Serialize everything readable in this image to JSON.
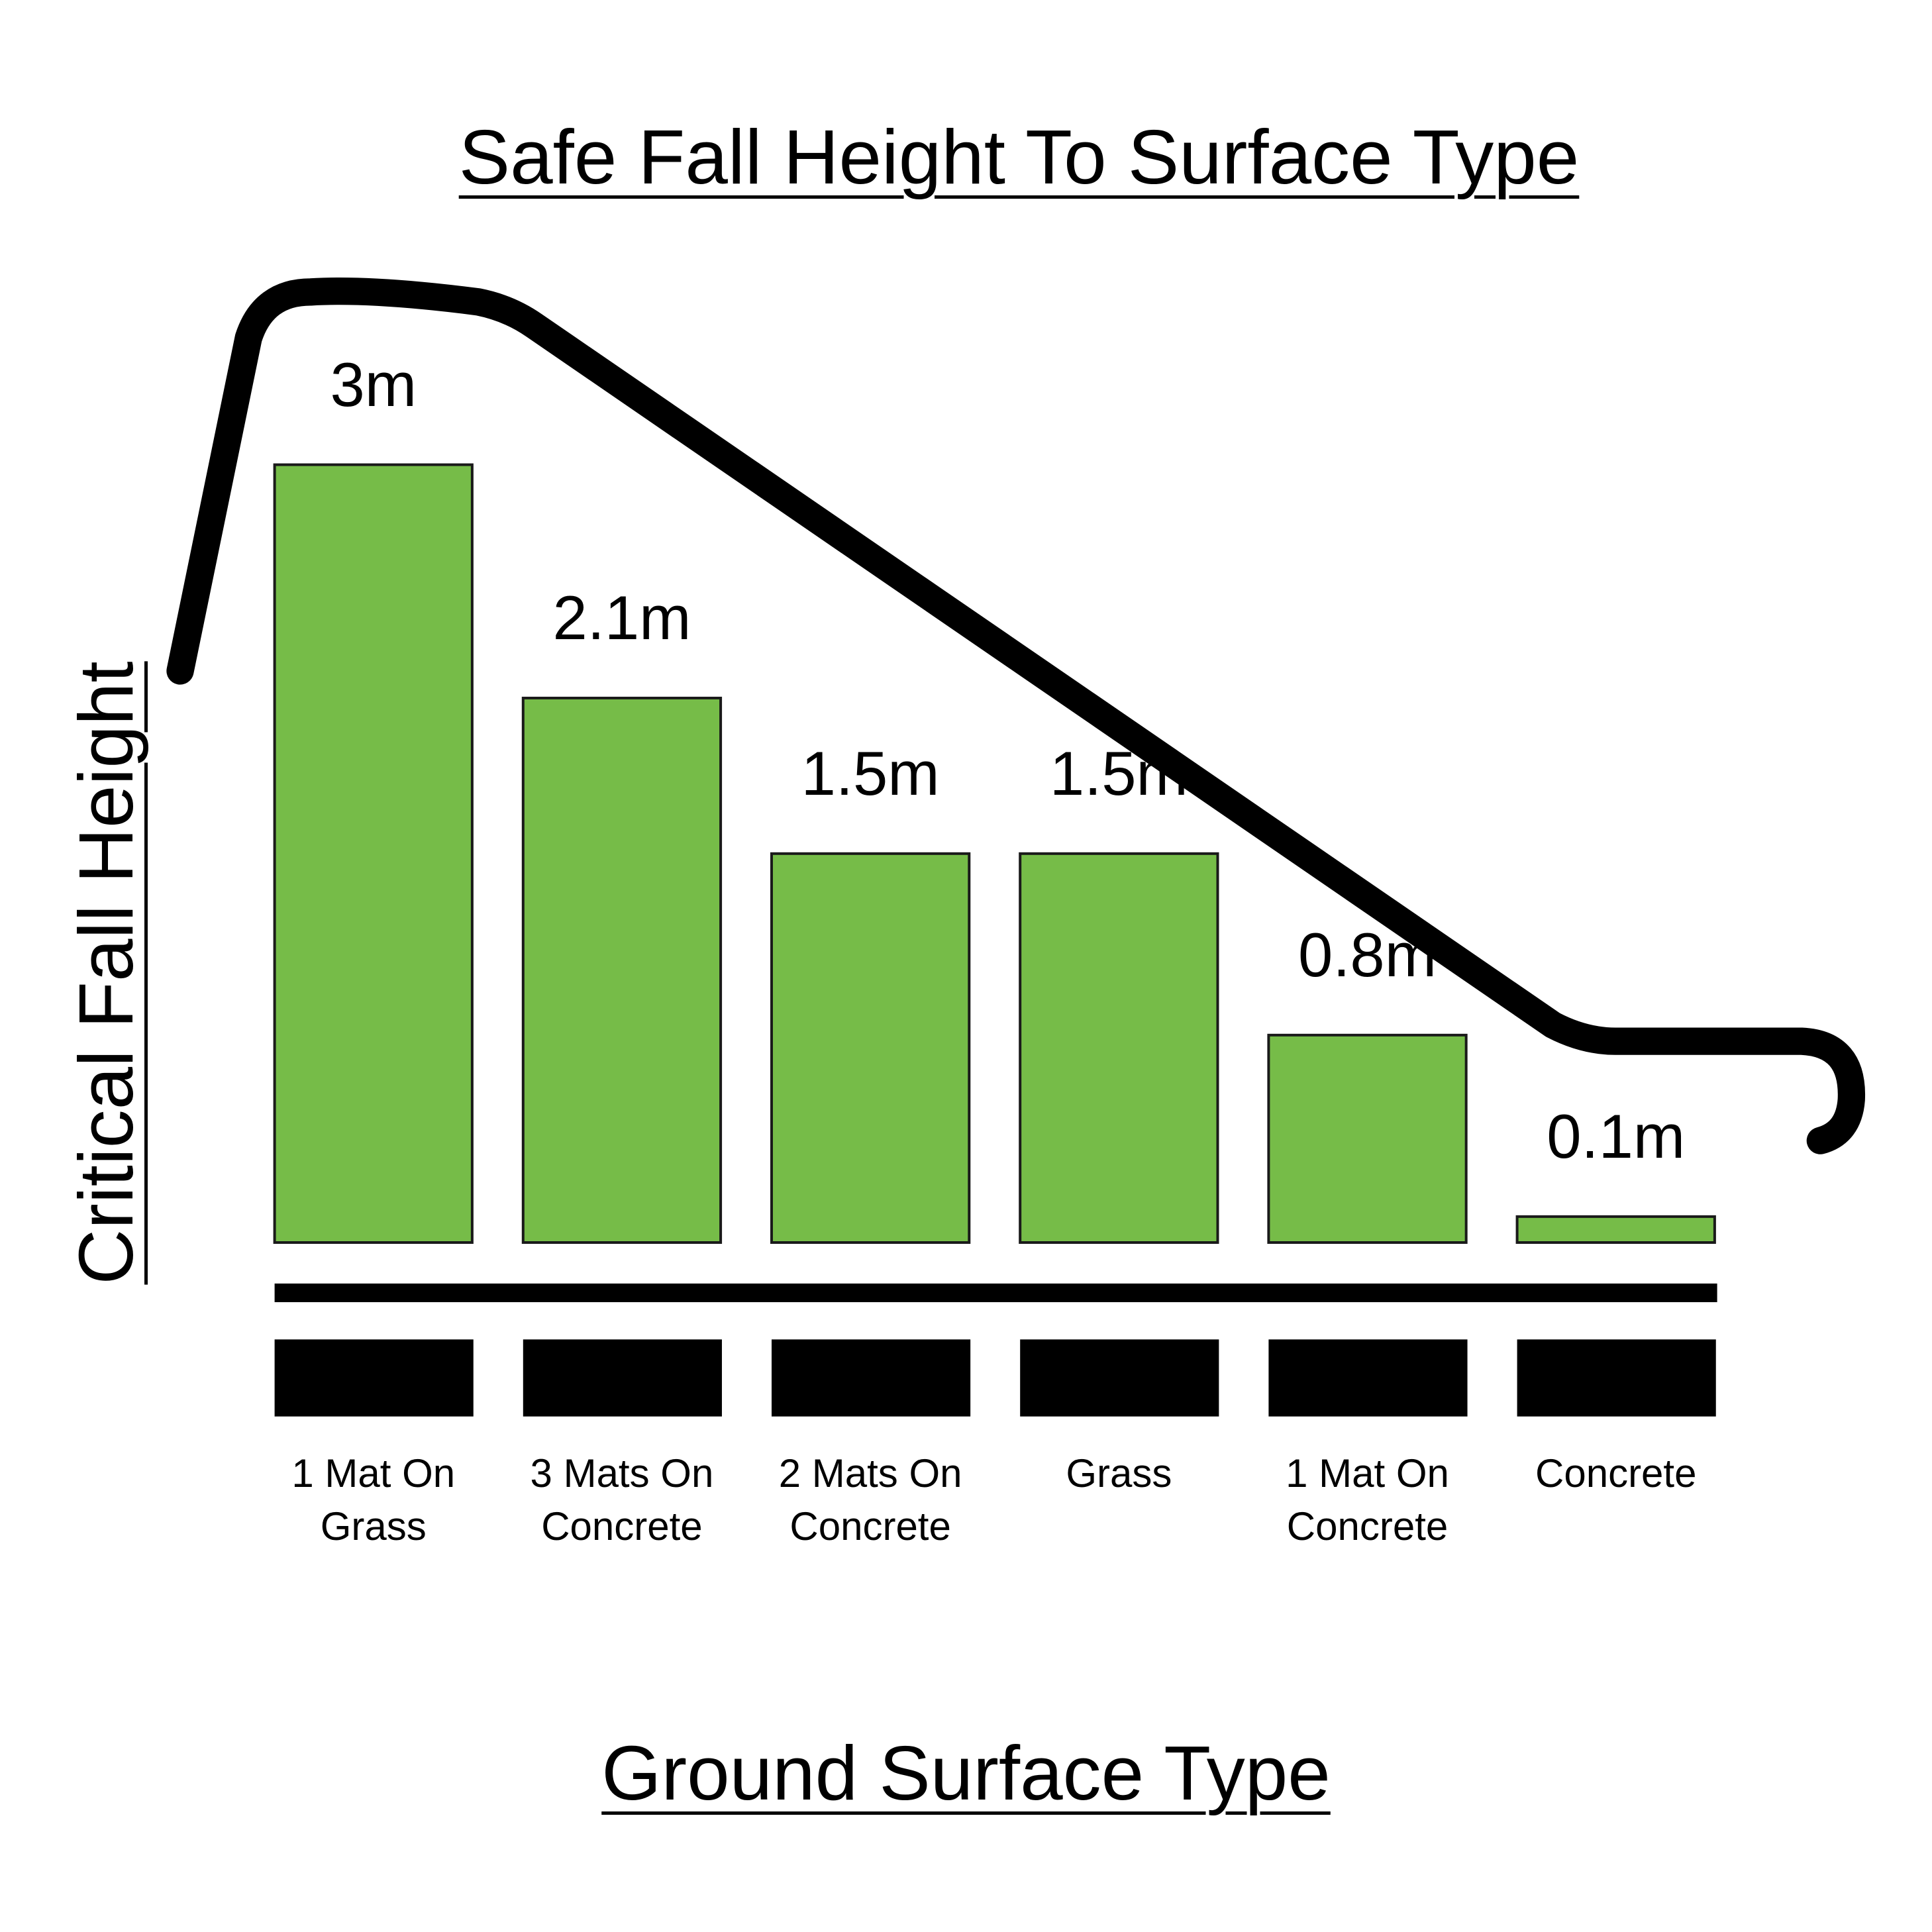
{
  "chart_data": {
    "type": "bar",
    "title": "Safe Fall Height To Surface Type",
    "x_label": "Ground Surface Type",
    "y_label": "Critical Fall Height",
    "categories": [
      "1 Mat On Grass",
      "3 Mats On Concrete",
      "2 Mats On Concrete",
      "Grass",
      "1 Mat On Concrete",
      "Concrete"
    ],
    "values": [
      3,
      2.1,
      1.5,
      1.5,
      0.8,
      0.1
    ],
    "value_labels": [
      "3m",
      "2.1m",
      "1.5m",
      "1.5m",
      "0.8m",
      "0.1m"
    ],
    "color": "#76bc48",
    "ylim": [
      0,
      3
    ]
  }
}
